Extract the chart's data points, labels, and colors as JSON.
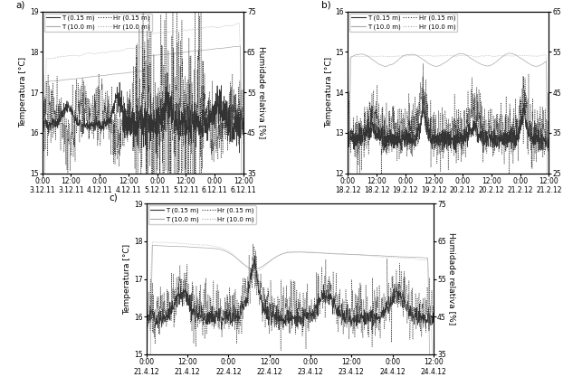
{
  "panels": [
    {
      "label": "a)",
      "T_ylim": [
        15,
        19
      ],
      "Hr_ylim": [
        35,
        75
      ],
      "T_yticks": [
        15,
        16,
        17,
        18,
        19
      ],
      "Hr_yticks": [
        35,
        45,
        55,
        65,
        75
      ],
      "xtick_labels": [
        "0:00",
        "12:00",
        "0:00",
        "12:00",
        "0:00",
        "12:00",
        "0:00",
        "12:00"
      ],
      "xtick_dates": [
        "3.12.11",
        "3.12.11",
        "4.12.11",
        "4.12.11",
        "5.12.11",
        "5.12.11",
        "6.12.11",
        "6.12.11"
      ]
    },
    {
      "label": "b)",
      "T_ylim": [
        12,
        16
      ],
      "Hr_ylim": [
        25,
        65
      ],
      "T_yticks": [
        12,
        13,
        14,
        15,
        16
      ],
      "Hr_yticks": [
        25,
        35,
        45,
        55,
        65
      ],
      "xtick_labels": [
        "0:00",
        "12:00",
        "0:00",
        "12:00",
        "0:00",
        "12:00",
        "0:00",
        "12:00"
      ],
      "xtick_dates": [
        "18.2.12",
        "18.2.12",
        "19.2.12",
        "19.2.12",
        "20.2.12",
        "20.2.12",
        "21.2.12",
        "21.2.12"
      ]
    },
    {
      "label": "c)",
      "T_ylim": [
        15,
        19
      ],
      "Hr_ylim": [
        35,
        75
      ],
      "T_yticks": [
        15,
        16,
        17,
        18,
        19
      ],
      "Hr_yticks": [
        35,
        45,
        55,
        65,
        75
      ],
      "xtick_labels": [
        "0:00",
        "12:00",
        "0:00",
        "12:00",
        "0:00",
        "12:00",
        "0:00",
        "12:00"
      ],
      "xtick_dates": [
        "21.4.12",
        "21.4.12",
        "22.4.12",
        "22.4.12",
        "23.4.12",
        "23.4.12",
        "24.4.12",
        "24.4.12"
      ]
    }
  ],
  "color_dark": "#333333",
  "color_light": "#aaaaaa",
  "ylabel_T": "Temperatura [°C]",
  "ylabel_Hr": "Humidade relativa [%]",
  "fontsize": 6.5,
  "tick_fontsize": 5.5,
  "n_points": 960
}
